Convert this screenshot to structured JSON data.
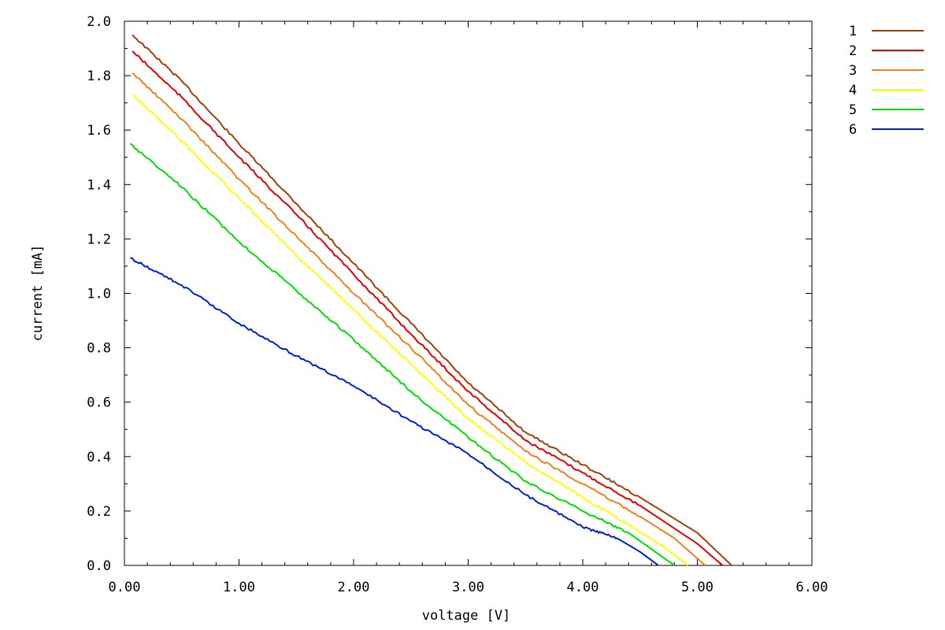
{
  "chart_data": {
    "type": "line",
    "xlabel": "voltage [V]",
    "ylabel": "current [mA]",
    "xlim": [
      0,
      6
    ],
    "ylim": [
      0,
      2
    ],
    "x_ticks": [
      "0.00",
      "1.00",
      "2.00",
      "3.00",
      "4.00",
      "5.00",
      "6.00"
    ],
    "y_ticks": [
      "0.0",
      "0.2",
      "0.4",
      "0.6",
      "0.8",
      "1.0",
      "1.2",
      "1.4",
      "1.6",
      "1.8",
      "2.0"
    ],
    "grid": false,
    "legend_position": "outside-top-right",
    "series": [
      {
        "name": "1",
        "color": "#a0400a",
        "x": [
          0.07,
          0.5,
          1.0,
          1.5,
          2.0,
          2.5,
          3.0,
          3.5,
          4.0,
          4.5,
          5.0,
          5.3
        ],
        "y": [
          1.95,
          1.78,
          1.55,
          1.33,
          1.11,
          0.89,
          0.67,
          0.49,
          0.37,
          0.25,
          0.12,
          0.0
        ]
      },
      {
        "name": "2",
        "color": "#e00000",
        "x": [
          0.07,
          0.5,
          1.0,
          1.5,
          2.0,
          2.5,
          3.0,
          3.5,
          4.0,
          4.5,
          5.0,
          5.22
        ],
        "y": [
          1.89,
          1.72,
          1.5,
          1.29,
          1.07,
          0.85,
          0.64,
          0.46,
          0.34,
          0.22,
          0.08,
          0.0
        ]
      },
      {
        "name": "3",
        "color": "#f08020",
        "x": [
          0.07,
          0.5,
          1.0,
          1.5,
          2.0,
          2.5,
          3.0,
          3.5,
          4.0,
          4.5,
          4.8,
          5.07
        ],
        "y": [
          1.81,
          1.64,
          1.42,
          1.21,
          1.0,
          0.8,
          0.59,
          0.42,
          0.3,
          0.18,
          0.1,
          0.0
        ]
      },
      {
        "name": "4",
        "color": "#ffff00",
        "x": [
          0.07,
          0.5,
          1.0,
          1.5,
          2.0,
          2.5,
          3.0,
          3.5,
          4.0,
          4.4,
          4.7,
          4.92
        ],
        "y": [
          1.73,
          1.56,
          1.35,
          1.14,
          0.94,
          0.74,
          0.54,
          0.38,
          0.25,
          0.15,
          0.07,
          0.0
        ]
      },
      {
        "name": "5",
        "color": "#00e000",
        "x": [
          0.05,
          0.5,
          1.0,
          1.5,
          2.0,
          2.5,
          3.0,
          3.5,
          4.0,
          4.4,
          4.6,
          4.8
        ],
        "y": [
          1.55,
          1.39,
          1.19,
          1.01,
          0.83,
          0.64,
          0.47,
          0.31,
          0.2,
          0.12,
          0.06,
          0.0
        ]
      },
      {
        "name": "6",
        "color": "#0020d0",
        "x": [
          0.05,
          0.5,
          1.0,
          1.5,
          2.0,
          2.5,
          3.0,
          3.5,
          4.0,
          4.3,
          4.5,
          4.66
        ],
        "y": [
          1.13,
          1.03,
          0.89,
          0.77,
          0.66,
          0.53,
          0.41,
          0.26,
          0.14,
          0.1,
          0.05,
          0.0
        ]
      }
    ]
  }
}
